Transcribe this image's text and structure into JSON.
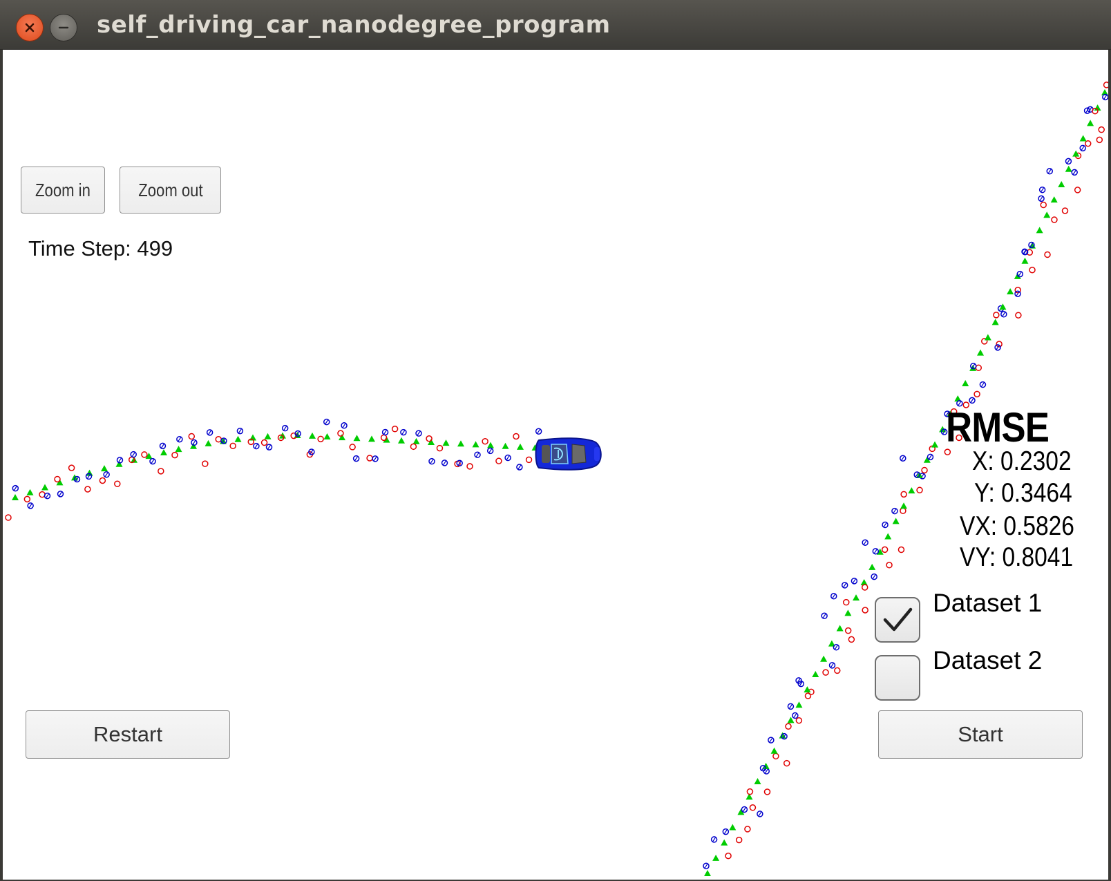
{
  "window": {
    "title": "self_driving_car_nanodegree_program"
  },
  "controls": {
    "zoom_in_label": "Zoom in",
    "zoom_out_label": "Zoom out",
    "restart_label": "Restart",
    "start_label": "Start"
  },
  "status": {
    "time_step_label": "Time Step:",
    "time_step_value": "499",
    "time_step_text": "Time Step: 499"
  },
  "rmse": {
    "title": "RMSE",
    "x_text": "X: 0.2302",
    "y_text": "Y: 0.3464",
    "vx_text": "VX: 0.5826",
    "vy_text": "VY: 0.8041"
  },
  "datasets": [
    {
      "label": "Dataset 1",
      "checked": true
    },
    {
      "label": "Dataset 2",
      "checked": false
    }
  ],
  "colors": {
    "lidar": "#e00000",
    "radar": "#0000cc",
    "estimate": "#00cc00",
    "car": "#1a2ee0"
  },
  "icons": {
    "close": "close-icon",
    "minimize": "minimize-icon",
    "car": "car-icon",
    "check": "checkmark-icon"
  }
}
